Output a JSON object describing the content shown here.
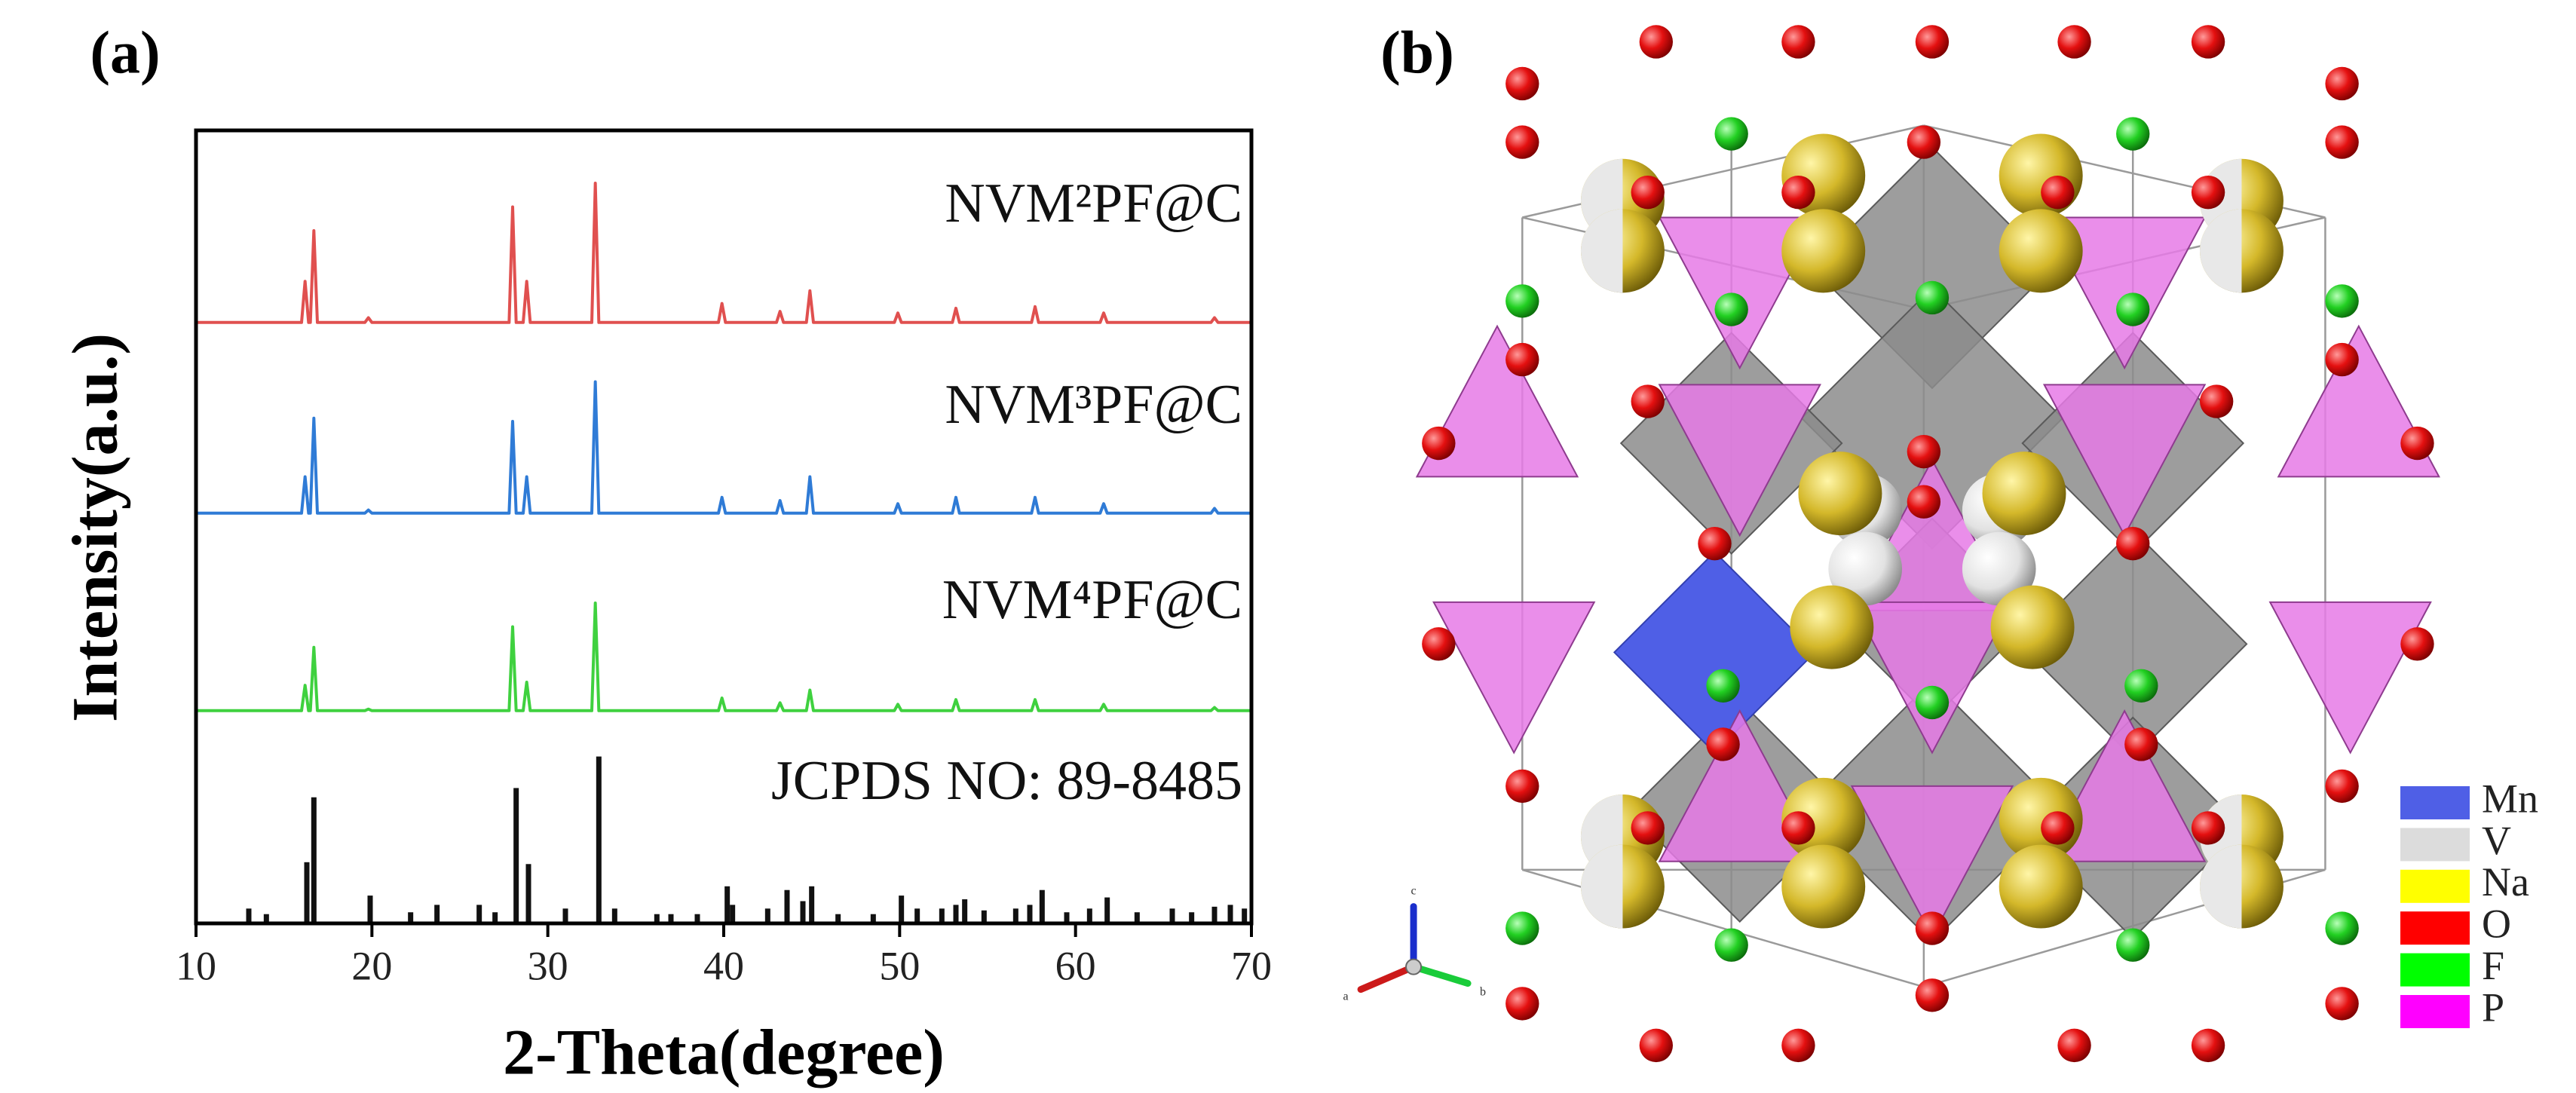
{
  "chart_data": [
    {
      "type": "line",
      "ylim": [
        0,
        100
      ],
      "x": [
        10,
        16.0,
        16.2,
        16.4,
        16.5,
        16.7,
        16.9,
        19.6,
        19.8,
        20.0,
        27.8,
        28.0,
        28.2,
        28.6,
        28.8,
        29.0,
        32.5,
        32.7,
        32.9,
        39.7,
        39.9,
        40.1,
        43.0,
        43.2,
        43.4,
        44.7,
        44.9,
        45.1,
        49.7,
        49.9,
        50.1,
        53.0,
        53.2,
        53.4,
        57.5,
        57.7,
        57.9,
        61.4,
        61.6,
        61.8,
        67.7,
        67.9,
        68.1,
        70
      ],
      "series": [
        {
          "name": "NVM²PF@C",
          "color": "#e0504f",
          "values": [
            2,
            2,
            28,
            2,
            2,
            60,
            2,
            2,
            5,
            2,
            2,
            75,
            2,
            2,
            28,
            2,
            2,
            90,
            2,
            2,
            14,
            2,
            2,
            9,
            2,
            2,
            22,
            2,
            2,
            8,
            2,
            2,
            11,
            2,
            2,
            12,
            2,
            2,
            8,
            2,
            2,
            5,
            2,
            2
          ]
        }
      ]
    },
    {
      "type": "line",
      "ylim": [
        0,
        100
      ],
      "x": [
        10,
        16.0,
        16.2,
        16.4,
        16.5,
        16.7,
        16.9,
        19.6,
        19.8,
        20.0,
        27.8,
        28.0,
        28.2,
        28.6,
        28.8,
        29.0,
        32.5,
        32.7,
        32.9,
        39.7,
        39.9,
        40.1,
        43.0,
        43.2,
        43.4,
        44.7,
        44.9,
        45.1,
        49.7,
        49.9,
        50.1,
        53.0,
        53.2,
        53.4,
        57.5,
        57.7,
        57.9,
        61.4,
        61.6,
        61.8,
        67.7,
        67.9,
        68.1,
        70
      ],
      "series": [
        {
          "name": "NVM³PF@C",
          "color": "#2f7bd6",
          "values": [
            2,
            2,
            25,
            2,
            2,
            62,
            2,
            2,
            4,
            2,
            2,
            60,
            2,
            2,
            25,
            2,
            2,
            85,
            2,
            2,
            12,
            2,
            2,
            10,
            2,
            2,
            25,
            2,
            2,
            8,
            2,
            2,
            12,
            2,
            2,
            12,
            2,
            2,
            8,
            2,
            2,
            5,
            2,
            2
          ]
        }
      ]
    },
    {
      "type": "line",
      "ylim": [
        0,
        100
      ],
      "x": [
        10,
        16.0,
        16.2,
        16.4,
        16.5,
        16.7,
        16.9,
        19.6,
        19.8,
        20.0,
        27.8,
        28.0,
        28.2,
        28.6,
        28.8,
        29.0,
        32.5,
        32.7,
        32.9,
        39.7,
        39.9,
        40.1,
        43.0,
        43.2,
        43.4,
        44.7,
        44.9,
        45.1,
        49.7,
        49.9,
        50.1,
        53.0,
        53.2,
        53.4,
        57.5,
        57.7,
        57.9,
        61.4,
        61.6,
        61.8,
        67.7,
        67.9,
        68.1,
        70
      ],
      "series": [
        {
          "name": "NVM⁴PF@C",
          "color": "#3fd13f",
          "values": [
            2,
            2,
            18,
            2,
            2,
            42,
            2,
            2,
            3,
            2,
            2,
            55,
            2,
            2,
            20,
            2,
            2,
            70,
            2,
            2,
            10,
            2,
            2,
            7,
            2,
            2,
            15,
            2,
            2,
            6,
            2,
            2,
            9,
            2,
            2,
            9,
            2,
            2,
            6,
            2,
            2,
            4,
            2,
            2
          ]
        }
      ]
    },
    {
      "type": "bar",
      "ylim": [
        0,
        100
      ],
      "xlim": [
        10,
        70
      ],
      "xticks": [
        10,
        20,
        30,
        40,
        50,
        60,
        70
      ],
      "xlabel": "2-Theta(degree)",
      "ylabel": "Intensity(a.u.)",
      "x": [
        13.0,
        14.0,
        16.3,
        16.7,
        19.9,
        22.2,
        23.7,
        26.1,
        27.0,
        28.2,
        28.9,
        31.0,
        32.9,
        33.8,
        36.2,
        37.0,
        38.5,
        40.2,
        40.5,
        42.5,
        43.6,
        44.5,
        45.0,
        46.5,
        48.5,
        50.1,
        51.0,
        52.4,
        53.2,
        53.7,
        54.8,
        56.6,
        57.4,
        58.1,
        59.5,
        60.8,
        61.8,
        63.5,
        65.5,
        66.6,
        67.9,
        68.8,
        69.6
      ],
      "series": [
        {
          "name": "JCPDS NO: 89-8485",
          "color": "#111111",
          "values": [
            8,
            5,
            33,
            68,
            15,
            6,
            10,
            10,
            6,
            73,
            32,
            8,
            90,
            8,
            5,
            5,
            5,
            20,
            10,
            8,
            18,
            12,
            20,
            5,
            5,
            15,
            8,
            8,
            10,
            13,
            7,
            8,
            10,
            18,
            6,
            8,
            14,
            6,
            8,
            6,
            9,
            10,
            8
          ]
        }
      ]
    }
  ],
  "panels": [
    "(a)",
    "(b)"
  ],
  "structure": {
    "axes": [
      "c",
      "a",
      "b"
    ],
    "legend": [
      {
        "name": "Mn",
        "color": "#4f5fe6"
      },
      {
        "name": "V",
        "color": "#dcdcdc"
      },
      {
        "name": "Na",
        "color": "#ffff00"
      },
      {
        "name": "O",
        "color": "#ff0000"
      },
      {
        "name": "F",
        "color": "#00ff00"
      },
      {
        "name": "P",
        "color": "#ff00ff"
      }
    ]
  }
}
